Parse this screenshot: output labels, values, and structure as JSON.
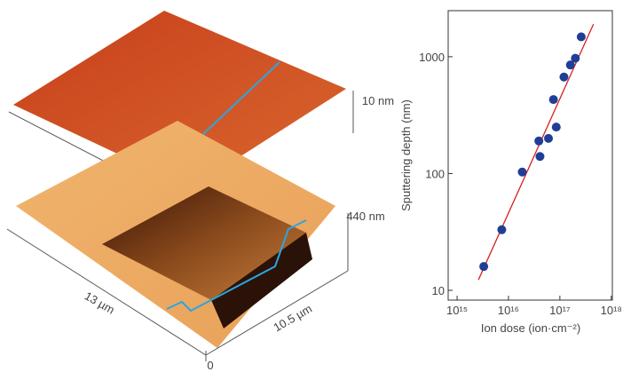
{
  "afm_image": {
    "top_height": "10 nm",
    "pit_depth": "440 nm",
    "width": "13 µm",
    "length": "10.5 µm",
    "origin": "0"
  },
  "chart_data": {
    "type": "scatter",
    "x_label": "Ion dose (ion·cm⁻²)",
    "y_label": "Sputtering depth (nm)",
    "xscale": "log",
    "yscale": "log",
    "xlim": [
      670000000000000.0,
      1.05e+18
    ],
    "ylim": [
      8.25,
      2480
    ],
    "xticks": [
      {
        "value": 1000000000000000.0,
        "label": "10¹⁵"
      },
      {
        "value": 1e+16,
        "label": "10¹⁶"
      },
      {
        "value": 1e+17,
        "label": "10¹⁷"
      },
      {
        "value": 1e+18,
        "label": "10¹⁸"
      }
    ],
    "yticks": [
      10,
      100,
      1000
    ],
    "color": "#1f3e96",
    "x": [
      3300000000000000.0,
      7400000000000000.0,
      1.85e+16,
      3.9e+16,
      4.1e+16,
      6e+16,
      7.5e+16,
      8.5e+16,
      1.2e+17,
      1.6e+17,
      2e+17,
      2.6e+17
    ],
    "values": [
      16,
      33,
      103,
      190,
      140,
      200,
      430,
      250,
      670,
      850,
      970,
      1480
    ],
    "fit_line": {
      "color": "#d62020",
      "x": [
        2600000000000000.0,
        4.5e+17
      ],
      "y": [
        12.3,
        1900
      ]
    }
  }
}
